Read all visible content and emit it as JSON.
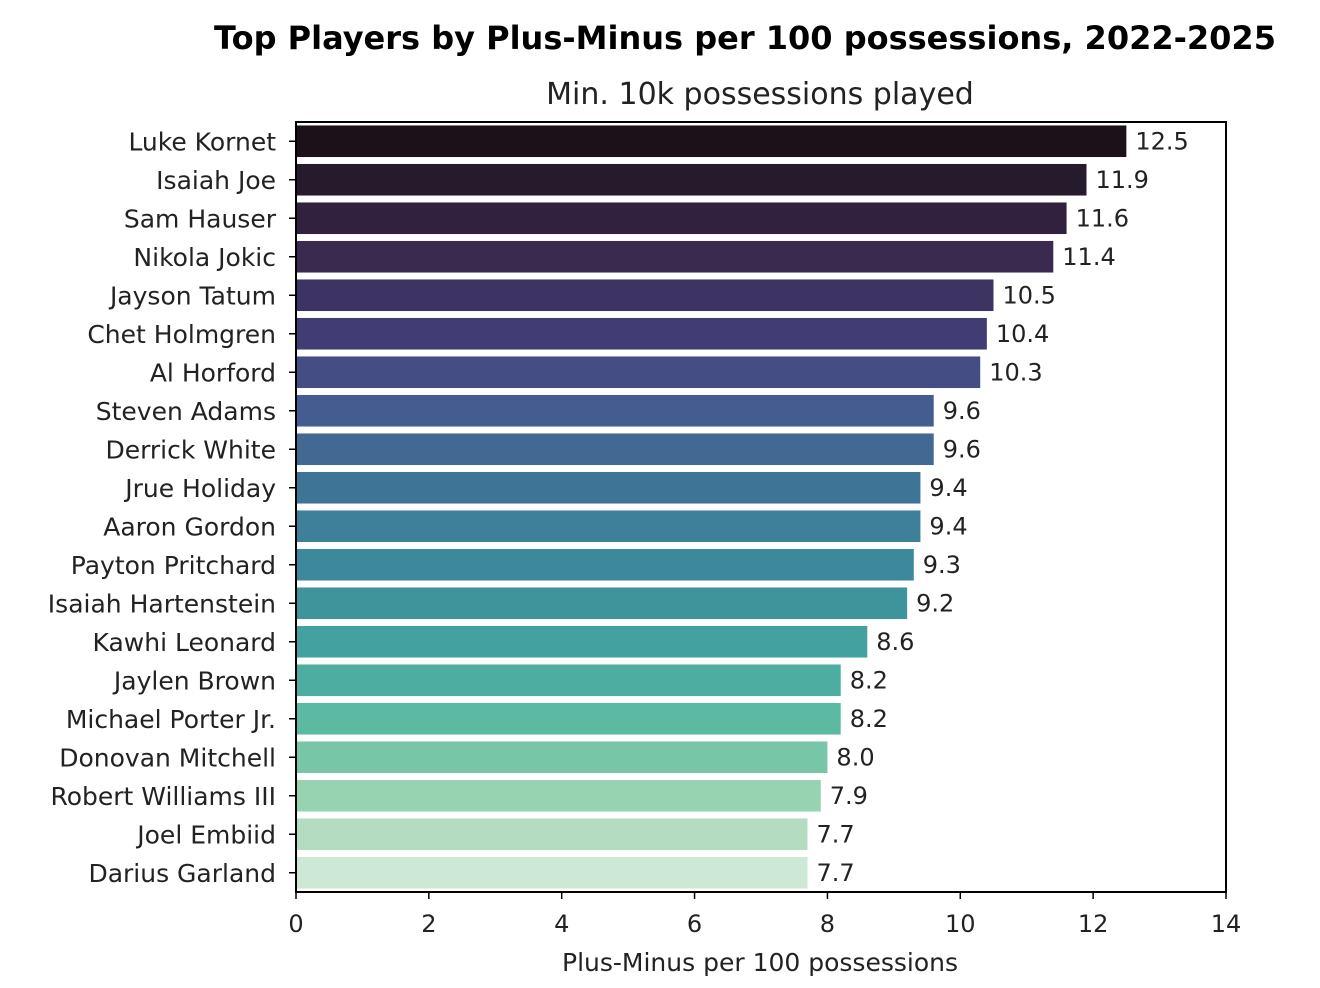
{
  "chart_data": {
    "type": "bar",
    "orientation": "horizontal",
    "title": "Top Players by Plus-Minus per 100 possessions, 2022-2025",
    "subtitle": "Min. 10k possessions played",
    "xlabel": "Plus-Minus per 100 possessions",
    "ylabel": "",
    "xlim": [
      0,
      14
    ],
    "xticks": [
      "0",
      "2",
      "4",
      "6",
      "8",
      "10",
      "12",
      "14"
    ],
    "grid": false,
    "categories": [
      "Luke Kornet",
      "Isaiah Joe",
      "Sam Hauser",
      "Nikola Jokic",
      "Jayson Tatum",
      "Chet Holmgren",
      "Al Horford",
      "Steven Adams",
      "Derrick White",
      "Jrue Holiday",
      "Aaron Gordon",
      "Payton Pritchard",
      "Isaiah Hartenstein",
      "Kawhi Leonard",
      "Jaylen Brown",
      "Michael Porter Jr.",
      "Donovan Mitchell",
      "Robert Williams III",
      "Joel Embiid",
      "Darius Garland"
    ],
    "values": [
      12.5,
      11.9,
      11.6,
      11.4,
      10.5,
      10.4,
      10.3,
      9.6,
      9.6,
      9.4,
      9.4,
      9.3,
      9.2,
      8.6,
      8.2,
      8.2,
      8.0,
      7.9,
      7.7,
      7.7
    ],
    "value_labels": [
      "12.5",
      "11.9",
      "11.6",
      "11.4",
      "10.5",
      "10.4",
      "10.3",
      "9.6",
      "9.6",
      "9.4",
      "9.4",
      "9.3",
      "9.2",
      "8.6",
      "8.2",
      "8.2",
      "8.0",
      "7.9",
      "7.7",
      "7.7"
    ],
    "colors": [
      "#1c1119",
      "#261b2c",
      "#31213e",
      "#3a2a4f",
      "#3d3464",
      "#413c73",
      "#454d85",
      "#455c90",
      "#426992",
      "#3e7596",
      "#3e7f9a",
      "#3e889b",
      "#3f949c",
      "#43a29f",
      "#4dada0",
      "#5cbaa2",
      "#77c6a7",
      "#98d3b1",
      "#b4dcc0",
      "#cde8d4"
    ]
  }
}
